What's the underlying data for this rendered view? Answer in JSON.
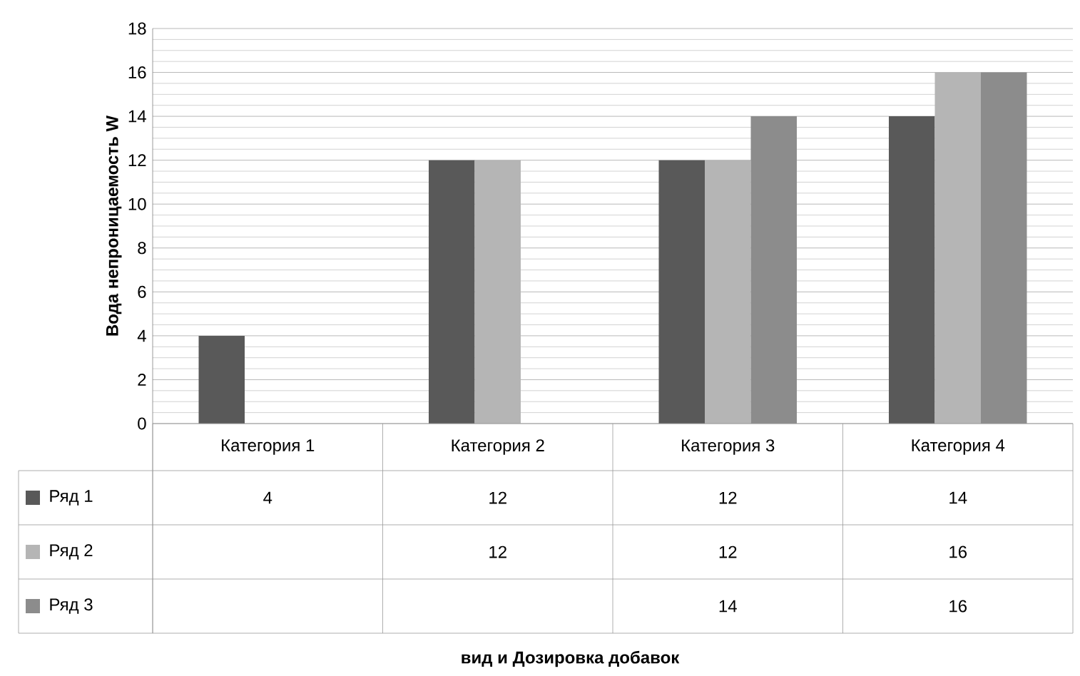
{
  "chart_data": {
    "type": "bar",
    "annotations": [
      "вид и Дозировка добавок"
    ],
    "ylabel": "Вода непроницаемость W",
    "categories": [
      "Категория 1",
      "Категория 2",
      "Категория 3",
      "Категория 4"
    ],
    "series": [
      {
        "name": "Ряд 1",
        "color": "#595959",
        "values": [
          4,
          12,
          12,
          14
        ]
      },
      {
        "name": "Ряд 2",
        "color": "#b5b5b5",
        "values": [
          null,
          12,
          12,
          16
        ]
      },
      {
        "name": "Ряд 3",
        "color": "#8c8c8c",
        "values": [
          null,
          null,
          14,
          16
        ]
      }
    ],
    "ylim": [
      0,
      18
    ],
    "yticks": [
      0,
      2,
      4,
      6,
      8,
      10,
      12,
      14,
      16,
      18
    ],
    "grid": "y",
    "legend": "bottom left",
    "data_labels": true
  }
}
